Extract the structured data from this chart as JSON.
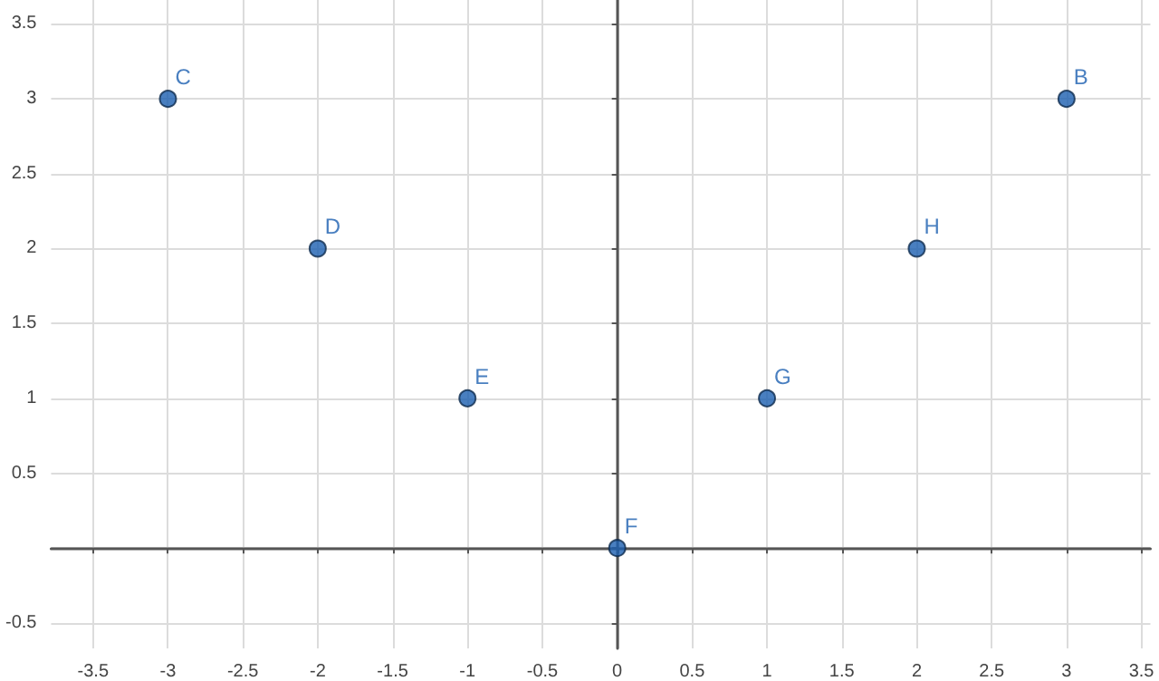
{
  "chart_data": {
    "type": "scatter",
    "x": [
      3,
      -3,
      -2,
      -1,
      0,
      1,
      2
    ],
    "values": [
      3,
      3,
      2,
      1,
      0,
      1,
      2
    ],
    "color": "#1c5fb0",
    "marker": "circle",
    "xlim": [
      -3.78,
      3.56
    ],
    "ylim": [
      -0.67,
      3.66
    ],
    "xticks": [
      -3.5,
      -3,
      -2.5,
      -2,
      -1.5,
      -1,
      -0.5,
      0,
      0.5,
      1,
      1.5,
      2,
      2.5,
      3,
      3.5
    ],
    "yticks": [
      -0.5,
      {
        "value": 0,
        "label": null
      },
      0.5,
      1,
      1.5,
      2,
      2.5,
      3,
      3.5
    ],
    "grid": true,
    "annotations": [
      {
        "text": "B",
        "x": 3,
        "y": 3
      },
      {
        "text": "C",
        "x": -3,
        "y": 3
      },
      {
        "text": "D",
        "x": -2,
        "y": 2
      },
      {
        "text": "E",
        "x": -1,
        "y": 1
      },
      {
        "text": "F",
        "x": 0,
        "y": 0
      },
      {
        "text": "G",
        "x": 1,
        "y": 1
      },
      {
        "text": "H",
        "x": 2,
        "y": 2
      }
    ]
  }
}
